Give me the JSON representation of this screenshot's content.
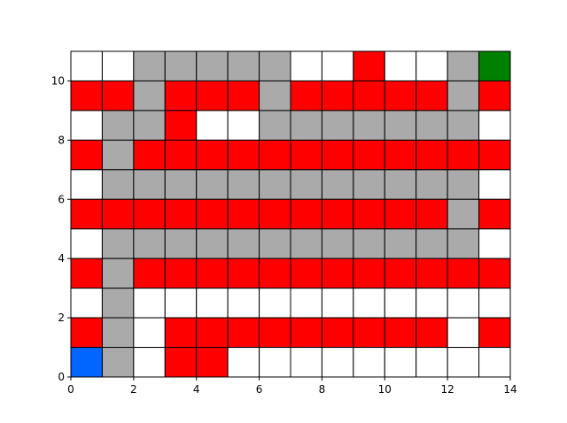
{
  "grid": {
    "cols": 14,
    "rows": 11,
    "legend_colors": {
      "W": "#ffffff",
      "G": "#aaaaaa",
      "R": "#ff0000",
      "S": "#0066ff",
      "E": "#008000"
    },
    "cell_types": {
      "W": "empty",
      "G": "path",
      "R": "wall",
      "S": "start",
      "E": "goal"
    },
    "rows_top_to_bottom": [
      "WWGGGGGWWRWWGE",
      "RRGRRRGRRRRRGR",
      "WGGRWWGGGGGGGW",
      "RGRRRRRRRRRRRR",
      "WGGGGGGGGGGGGW",
      "RRRRRRRRRRRRGR",
      "WGGGGGGGGGGGGW",
      "RGRRRRRRRRRRRR",
      "WGWWWWWWWWWWWW",
      "RGWRRRRRRRRRWR",
      "SGWRRWWWWWWWWW"
    ]
  },
  "axes": {
    "x_ticks": [
      "0",
      "2",
      "4",
      "6",
      "8",
      "10",
      "12",
      "14"
    ],
    "y_ticks": [
      "0",
      "2",
      "4",
      "6",
      "8",
      "10"
    ]
  }
}
